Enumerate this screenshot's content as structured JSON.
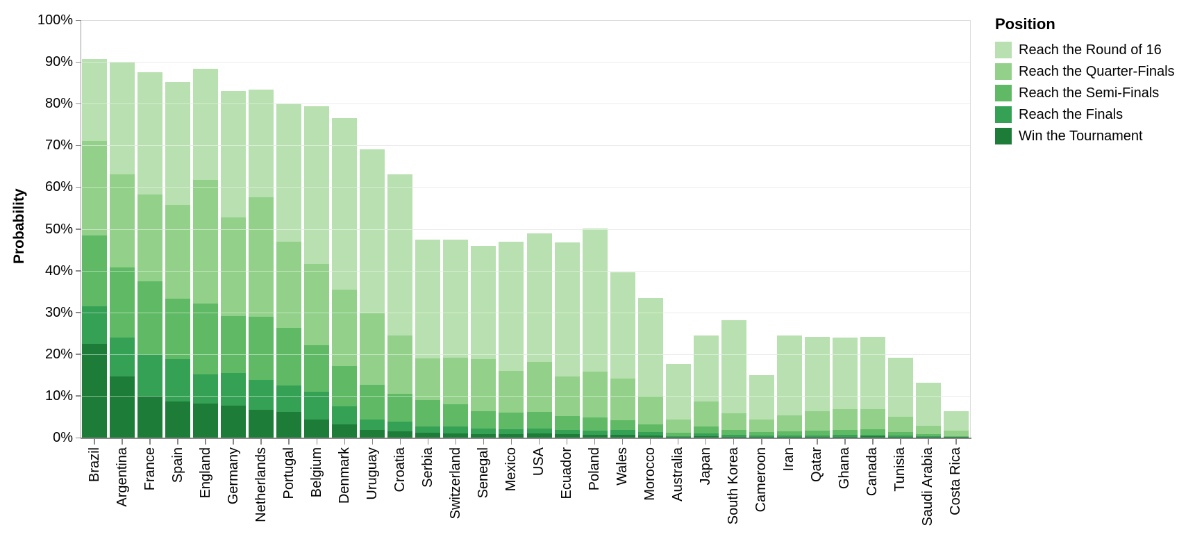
{
  "y_axis": {
    "title": "Probability"
  },
  "legend": {
    "title": "Position",
    "items": [
      {
        "label": "Reach the Round of 16",
        "color": "#b9e0b0"
      },
      {
        "label": "Reach the Quarter-Finals",
        "color": "#93d18b"
      },
      {
        "label": "Reach the Semi-Finals",
        "color": "#60ba65"
      },
      {
        "label": "Reach the Finals",
        "color": "#34a155"
      },
      {
        "label": "Win the Tournament",
        "color": "#1d7d38"
      }
    ]
  },
  "chart_data": {
    "type": "bar",
    "subtype": "layered-overlay-cumulative",
    "title": "",
    "xlabel": "",
    "ylabel": "Probability",
    "legend_title": "Position",
    "legend_position": "right",
    "grid": true,
    "ylim": [
      0,
      100
    ],
    "y_ticks": [
      0,
      10,
      20,
      30,
      40,
      50,
      60,
      70,
      80,
      90,
      100
    ],
    "y_tick_labels": [
      "0%",
      "10%",
      "20%",
      "30%",
      "40%",
      "50%",
      "60%",
      "70%",
      "80%",
      "90%",
      "100%"
    ],
    "values_are_cumulative_percent": true,
    "categories": [
      "Brazil",
      "Argentina",
      "France",
      "Spain",
      "England",
      "Germany",
      "Netherlands",
      "Portugal",
      "Belgium",
      "Denmark",
      "Uruguay",
      "Croatia",
      "Serbia",
      "Switzerland",
      "Senegal",
      "Mexico",
      "USA",
      "Ecuador",
      "Poland",
      "Wales",
      "Morocco",
      "Australia",
      "Japan",
      "South Korea",
      "Cameroon",
      "Iran",
      "Qatar",
      "Ghana",
      "Canada",
      "Tunisia",
      "Saudi Arabia",
      "Costa Rica"
    ],
    "series": [
      {
        "name": "Reach the Round of 16",
        "color": "#b9e0b0",
        "values": [
          90.6,
          89.8,
          87.5,
          85.2,
          88.3,
          83.0,
          83.3,
          80.0,
          79.3,
          76.5,
          69.0,
          63.0,
          47.4,
          47.4,
          46.0,
          46.9,
          49.0,
          46.8,
          50.1,
          39.6,
          33.5,
          17.6,
          24.4,
          28.1,
          15.0,
          24.4,
          24.2,
          24.0,
          24.2,
          19.2,
          13.2,
          6.4
        ]
      },
      {
        "name": "Reach the Quarter-Finals",
        "color": "#93d18b",
        "values": [
          71.0,
          63.0,
          58.3,
          55.8,
          61.8,
          52.8,
          57.5,
          47.0,
          41.6,
          35.4,
          29.8,
          24.4,
          18.9,
          19.2,
          18.8,
          16.0,
          18.1,
          14.7,
          15.8,
          14.2,
          10.0,
          4.3,
          8.6,
          5.8,
          4.4,
          5.3,
          6.4,
          6.8,
          6.8,
          5.0,
          2.8,
          1.6
        ]
      },
      {
        "name": "Reach the Semi-Finals",
        "color": "#60ba65",
        "values": [
          48.5,
          40.8,
          37.5,
          33.2,
          32.1,
          29.2,
          28.9,
          26.3,
          22.2,
          17.2,
          12.6,
          10.5,
          9.0,
          8.0,
          6.3,
          6.0,
          6.2,
          5.2,
          4.8,
          4.2,
          3.2,
          1.2,
          2.7,
          1.9,
          1.3,
          1.5,
          1.6,
          1.8,
          2.0,
          1.3,
          0.8,
          0.4
        ]
      },
      {
        "name": "Reach the Finals",
        "color": "#34a155",
        "values": [
          31.4,
          24.0,
          20.0,
          18.8,
          15.2,
          15.5,
          13.8,
          12.5,
          11.0,
          7.5,
          4.4,
          3.9,
          2.6,
          2.6,
          2.2,
          2.0,
          2.2,
          1.9,
          1.7,
          1.8,
          1.4,
          0.4,
          1.0,
          0.6,
          0.45,
          0.5,
          0.5,
          0.6,
          0.7,
          0.45,
          0.25,
          0.12
        ]
      },
      {
        "name": "Win the Tournament",
        "color": "#1d7d38",
        "values": [
          22.5,
          14.6,
          10.0,
          8.6,
          8.2,
          7.6,
          6.7,
          6.1,
          4.4,
          3.2,
          1.9,
          1.5,
          1.2,
          1.0,
          0.8,
          0.9,
          1.0,
          0.8,
          0.7,
          0.7,
          0.5,
          0.15,
          0.3,
          0.2,
          0.15,
          0.15,
          0.15,
          0.2,
          0.25,
          0.15,
          0.08,
          0.05
        ]
      }
    ]
  }
}
